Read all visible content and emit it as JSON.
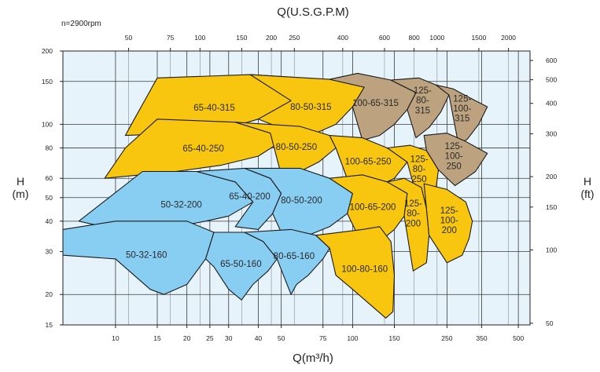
{
  "chart_data": {
    "type": "area",
    "title": "Q(U.S.G.P.M)",
    "speed_label": "n=2900rpm",
    "xlabel": "Q(m³/h)",
    "ylabel_left": "H\n(m)",
    "ylabel_right": "H\n(ft)",
    "x_scale": "log",
    "y_scale": "log",
    "xlim": [
      6,
      560
    ],
    "ylim": [
      15,
      200
    ],
    "x_ticks": [
      10,
      15,
      20,
      25,
      30,
      40,
      50,
      75,
      100,
      150,
      250,
      350,
      500
    ],
    "y_ticks": [
      15,
      20,
      30,
      40,
      50,
      60,
      80,
      100,
      150,
      200
    ],
    "top_ticks": [
      50,
      75,
      100,
      150,
      200,
      250,
      400,
      600,
      800,
      1000,
      1500,
      2000
    ],
    "right_ticks": [
      50,
      100,
      150,
      200,
      300,
      400,
      500,
      600
    ],
    "grid": true,
    "colors": {
      "blue": "#88cdf2",
      "yellow": "#f9c60f",
      "brown": "#bca27e",
      "grid": "#3a3a3a",
      "plot_bg": "#e6f3fb"
    },
    "zones": [
      {
        "label": "65-40-315",
        "color": "yellow",
        "poly": [
          [
            15,
            155
          ],
          [
            37,
            160
          ],
          [
            62,
            155
          ],
          [
            55,
            125
          ],
          [
            40,
            105
          ],
          [
            28,
            95
          ],
          [
            20,
            92
          ],
          [
            11,
            90
          ],
          [
            12,
            105
          ]
        ]
      },
      {
        "label": "80-50-315",
        "color": "yellow",
        "poly": [
          [
            37,
            160
          ],
          [
            80,
            153
          ],
          [
            112,
            142
          ],
          [
            100,
            118
          ],
          [
            85,
            100
          ],
          [
            70,
            92
          ],
          [
            60,
            90
          ],
          [
            40,
            105
          ],
          [
            55,
            125
          ]
        ]
      },
      {
        "label": "100-65-315",
        "color": "brown",
        "poly": [
          [
            80,
            153
          ],
          [
            105,
            162
          ],
          [
            145,
            152
          ],
          [
            185,
            135
          ],
          [
            170,
            115
          ],
          [
            150,
            100
          ],
          [
            130,
            90
          ],
          [
            110,
            86
          ],
          [
            100,
            118
          ],
          [
            112,
            142
          ]
        ]
      },
      {
        "label": "125-80-315",
        "color": "brown",
        "poly": [
          [
            145,
            152
          ],
          [
            190,
            155
          ],
          [
            225,
            145
          ],
          [
            255,
            132
          ],
          [
            235,
            112
          ],
          [
            210,
            97
          ],
          [
            185,
            88
          ],
          [
            170,
            115
          ],
          [
            185,
            135
          ]
        ]
      },
      {
        "label": "125-100-315",
        "color": "brown",
        "poly": [
          [
            225,
            145
          ],
          [
            265,
            140
          ],
          [
            305,
            130
          ],
          [
            370,
            118
          ],
          [
            340,
            100
          ],
          [
            305,
            87
          ],
          [
            280,
            82
          ],
          [
            255,
            132
          ]
        ]
      },
      {
        "label": "65-40-250",
        "color": "yellow",
        "poly": [
          [
            15,
            105
          ],
          [
            32,
            102
          ],
          [
            45,
            92
          ],
          [
            50,
            85
          ],
          [
            40,
            74
          ],
          [
            28,
            68
          ],
          [
            18,
            64
          ],
          [
            9,
            60
          ],
          [
            11,
            80
          ]
        ]
      },
      {
        "label": "80-50-250",
        "color": "yellow",
        "poly": [
          [
            32,
            102
          ],
          [
            60,
            98
          ],
          [
            80,
            90
          ],
          [
            85,
            80
          ],
          [
            72,
            70
          ],
          [
            60,
            64
          ],
          [
            50,
            62
          ],
          [
            45,
            92
          ]
        ]
      },
      {
        "label": "100-65-250",
        "color": "yellow",
        "poly": [
          [
            80,
            90
          ],
          [
            110,
            88
          ],
          [
            140,
            80
          ],
          [
            170,
            70
          ],
          [
            150,
            60
          ],
          [
            125,
            55
          ],
          [
            100,
            52
          ],
          [
            85,
            80
          ]
        ]
      },
      {
        "label": "125-80-250",
        "color": "yellow",
        "poly": [
          [
            140,
            80
          ],
          [
            175,
            82
          ],
          [
            205,
            78
          ],
          [
            230,
            65
          ],
          [
            225,
            55
          ],
          [
            210,
            50
          ],
          [
            190,
            47
          ],
          [
            170,
            70
          ]
        ]
      },
      {
        "label": "125-100-250",
        "color": "brown",
        "poly": [
          [
            200,
            90
          ],
          [
            250,
            92
          ],
          [
            300,
            85
          ],
          [
            370,
            76
          ],
          [
            330,
            64
          ],
          [
            300,
            60
          ],
          [
            270,
            56
          ],
          [
            230,
            65
          ],
          [
            205,
            78
          ]
        ]
      },
      {
        "label": "50-32-200",
        "color": "blue",
        "poly": [
          [
            13,
            64
          ],
          [
            22,
            64
          ],
          [
            32,
            58
          ],
          [
            38,
            48
          ],
          [
            30,
            42
          ],
          [
            24,
            40
          ],
          [
            18,
            38
          ],
          [
            10,
            37
          ],
          [
            7,
            40
          ]
        ]
      },
      {
        "label": "65-40-200",
        "color": "blue",
        "poly": [
          [
            22,
            64
          ],
          [
            35,
            66
          ],
          [
            45,
            60
          ],
          [
            50,
            52
          ],
          [
            46,
            43
          ],
          [
            40,
            37
          ],
          [
            32,
            38
          ],
          [
            38,
            48
          ],
          [
            32,
            58
          ]
        ]
      },
      {
        "label": "80-50-200",
        "color": "blue",
        "poly": [
          [
            35,
            66
          ],
          [
            60,
            66
          ],
          [
            80,
            60
          ],
          [
            100,
            52
          ],
          [
            95,
            43
          ],
          [
            80,
            38
          ],
          [
            65,
            35
          ],
          [
            50,
            36
          ],
          [
            46,
            43
          ],
          [
            50,
            52
          ],
          [
            45,
            60
          ]
        ]
      },
      {
        "label": "100-65-200",
        "color": "yellow",
        "poly": [
          [
            80,
            60
          ],
          [
            110,
            62
          ],
          [
            140,
            58
          ],
          [
            170,
            52
          ],
          [
            165,
            42
          ],
          [
            150,
            37
          ],
          [
            130,
            33
          ],
          [
            110,
            32
          ],
          [
            95,
            43
          ],
          [
            100,
            52
          ]
        ]
      },
      {
        "label": "125-80-200",
        "color": "yellow",
        "poly": [
          [
            140,
            58
          ],
          [
            165,
            60
          ],
          [
            195,
            55
          ],
          [
            205,
            45
          ],
          [
            210,
            35
          ],
          [
            205,
            27
          ],
          [
            180,
            25
          ],
          [
            165,
            42
          ],
          [
            170,
            52
          ]
        ]
      },
      {
        "label": "125-100-200",
        "color": "yellow",
        "poly": [
          [
            200,
            57
          ],
          [
            250,
            54
          ],
          [
            300,
            48
          ],
          [
            320,
            40
          ],
          [
            310,
            34
          ],
          [
            290,
            29
          ],
          [
            250,
            27
          ],
          [
            210,
            35
          ],
          [
            205,
            45
          ]
        ]
      },
      {
        "label": "50-32-160",
        "color": "blue",
        "poly": [
          [
            10,
            40
          ],
          [
            20,
            40
          ],
          [
            26,
            36
          ],
          [
            24,
            28
          ],
          [
            20,
            22
          ],
          [
            16,
            20
          ],
          [
            14,
            21
          ],
          [
            10,
            28
          ],
          [
            6,
            29
          ],
          [
            6,
            37
          ]
        ]
      },
      {
        "label": "65-50-160",
        "color": "blue",
        "poly": [
          [
            26,
            36
          ],
          [
            35,
            36
          ],
          [
            42,
            33
          ],
          [
            48,
            28
          ],
          [
            44,
            25
          ],
          [
            38,
            22
          ],
          [
            34,
            19
          ],
          [
            30,
            21
          ],
          [
            26,
            26
          ],
          [
            24,
            28
          ]
        ]
      },
      {
        "label": "80-65-160",
        "color": "blue",
        "poly": [
          [
            35,
            36
          ],
          [
            55,
            37
          ],
          [
            70,
            35
          ],
          [
            80,
            31
          ],
          [
            75,
            28
          ],
          [
            65,
            24
          ],
          [
            58,
            22
          ],
          [
            55,
            20
          ],
          [
            48,
            28
          ],
          [
            42,
            33
          ]
        ]
      },
      {
        "label": "100-80-160",
        "color": "yellow",
        "poly": [
          [
            70,
            35
          ],
          [
            110,
            37
          ],
          [
            130,
            38
          ],
          [
            145,
            33
          ],
          [
            150,
            24
          ],
          [
            148,
            17
          ],
          [
            138,
            16
          ],
          [
            120,
            18
          ],
          [
            100,
            21
          ],
          [
            85,
            24
          ],
          [
            80,
            31
          ]
        ]
      }
    ]
  }
}
